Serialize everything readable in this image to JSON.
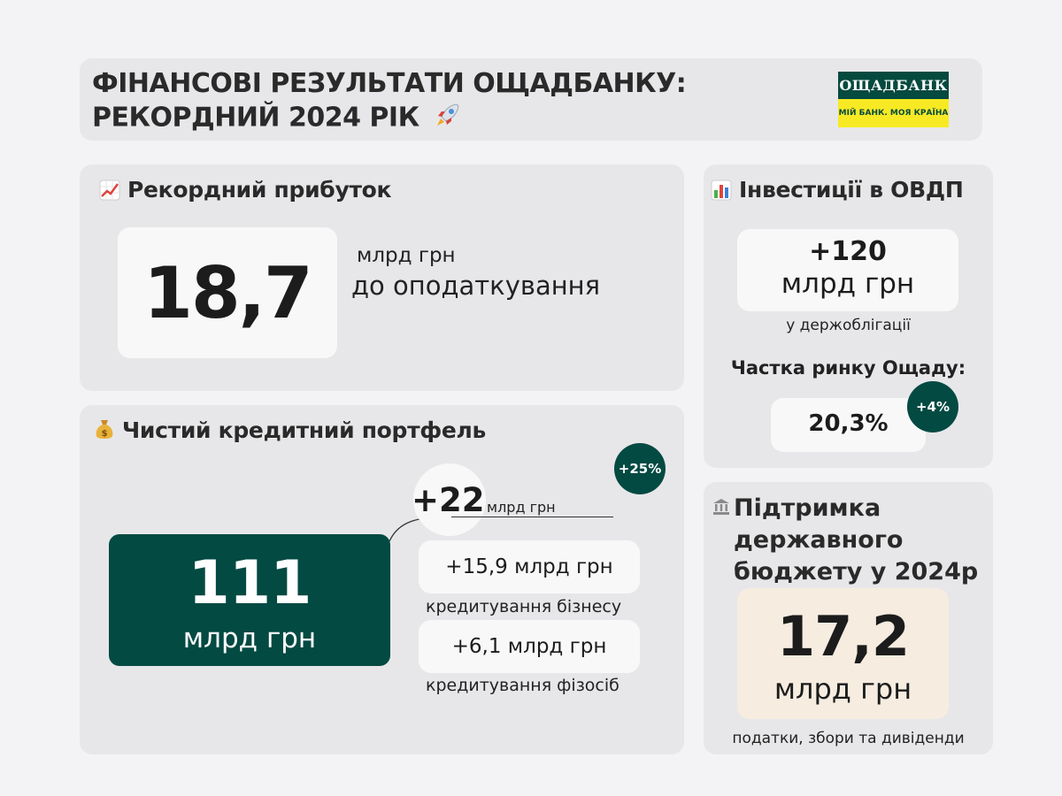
{
  "header": {
    "title_line1": "ФІНАНСОВІ РЕЗУЛЬТАТИ ОЩАДБАНКУ:",
    "title_line2": "РЕКОРДНИЙ 2024 РІК",
    "logo_name": "ОЩАДБАНК",
    "logo_slogan": "МІЙ БАНК. МОЯ КРАЇНА",
    "rocket_icon": "rocket-icon"
  },
  "profit": {
    "title": "Рекордний прибуток",
    "icon": "chart-increasing-icon",
    "value": "18,7",
    "unit": "млрд грн",
    "description": "до оподаткування"
  },
  "credit": {
    "title": "Чистий кредитний портфель",
    "icon": "money-bag-icon",
    "value": "111",
    "unit": "млрд грн",
    "growth": "+22",
    "growth_unit": "млрд грн",
    "growth_pct": "+25%",
    "business_value": "+15,9 млрд грн",
    "business_label": "кредитування бізнесу",
    "individuals_value": "+6,1 млрд грн",
    "individuals_label": "кредитування фізосіб"
  },
  "ovdp": {
    "title": "Інвестиції в ОВДП",
    "icon": "bar-chart-icon",
    "value": "+120",
    "unit": "млрд грн",
    "description": "у держоблігації",
    "share_label": "Частка ринку Ощаду:",
    "share_value": "20,3%",
    "share_growth": "+4%"
  },
  "budget": {
    "title_line1": "Підтримка",
    "title_line2": "державного",
    "title_line3": "бюджету у 2024р",
    "icon": "classical-building-icon",
    "value": "17,2",
    "unit": "млрд грн",
    "description": "податки, збори та дивіденди"
  },
  "colors": {
    "accent_dark_green": "#034a42",
    "logo_yellow": "#f7ea24",
    "budget_card": "#f6ece0"
  }
}
